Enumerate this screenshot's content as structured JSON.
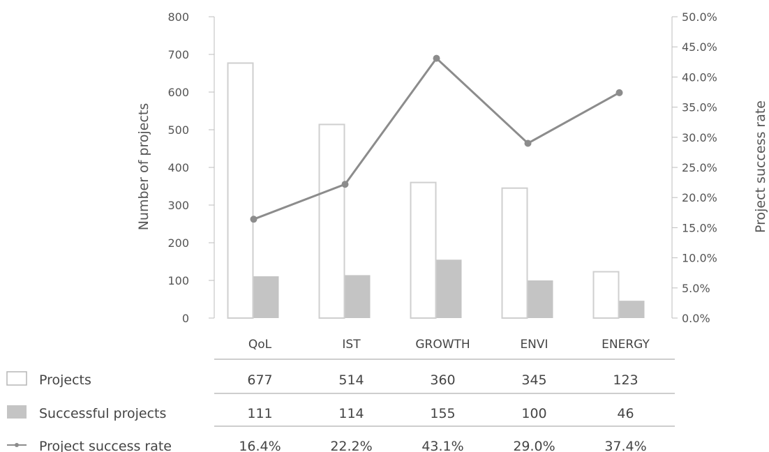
{
  "chart_data": {
    "type": "bar+line",
    "categories": [
      "QoL",
      "IST",
      "GROWTH",
      "ENVI",
      "ENERGY"
    ],
    "series": [
      {
        "name": "Projects",
        "kind": "bar",
        "style": "outline",
        "axis": "left",
        "values": [
          677,
          514,
          360,
          345,
          123
        ],
        "color": "#cfcfcf"
      },
      {
        "name": "Successful projects",
        "kind": "bar",
        "style": "filled",
        "axis": "left",
        "values": [
          111,
          114,
          155,
          100,
          46
        ],
        "color": "#c4c4c4"
      },
      {
        "name": "Project success rate",
        "kind": "line",
        "axis": "right",
        "values": [
          16.4,
          22.2,
          43.1,
          29.0,
          37.4
        ],
        "color": "#8c8c8c"
      }
    ],
    "ylabel": "Number of projects",
    "ylabel_right": "Project success rate",
    "ylim": [
      0,
      800
    ],
    "ylim_right": [
      0,
      50
    ],
    "yticks": [
      "0",
      "100",
      "200",
      "300",
      "400",
      "500",
      "600",
      "700",
      "800"
    ],
    "yticks_right": [
      "0.0%",
      "5.0%",
      "10.0%",
      "15.0%",
      "20.0%",
      "25.0%",
      "30.0%",
      "35.0%",
      "40.0%",
      "45.0%",
      "50.0%"
    ],
    "grid": false,
    "legend": "left, as data table rows",
    "table": {
      "rows": [
        {
          "label": "Projects",
          "cells": [
            "677",
            "514",
            "360",
            "345",
            "123"
          ]
        },
        {
          "label": "Successful projects",
          "cells": [
            "111",
            "114",
            "155",
            "100",
            "46"
          ]
        },
        {
          "label": "Project success rate",
          "cells": [
            "16.4%",
            "22.2%",
            "43.1%",
            "29.0%",
            "37.4%"
          ]
        }
      ]
    }
  }
}
